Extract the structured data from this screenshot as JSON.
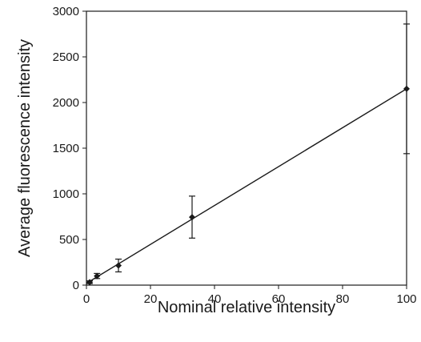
{
  "chart_data": {
    "type": "scatter",
    "xlabel": "Nominal relative intensity",
    "ylabel": "Average fluorescence intensity",
    "xlim": [
      0,
      100
    ],
    "ylim": [
      0,
      3000
    ],
    "xticks": [
      0,
      20,
      40,
      60,
      80,
      100
    ],
    "yticks": [
      0,
      500,
      1000,
      1500,
      2000,
      2500,
      3000
    ],
    "grid": false,
    "legend": "none",
    "series": [
      {
        "marker": "diamond",
        "color": "#1a1a1a",
        "points": [
          {
            "x": 1,
            "y": 32,
            "err": 15
          },
          {
            "x": 3.3,
            "y": 100,
            "err": 28
          },
          {
            "x": 10,
            "y": 215,
            "err": 70
          },
          {
            "x": 33,
            "y": 745,
            "err": 230
          },
          {
            "x": 100,
            "y": 2150,
            "err": 710
          }
        ]
      }
    ],
    "fit_line": {
      "x": [
        0,
        100
      ],
      "y": [
        20,
        2150
      ]
    }
  }
}
